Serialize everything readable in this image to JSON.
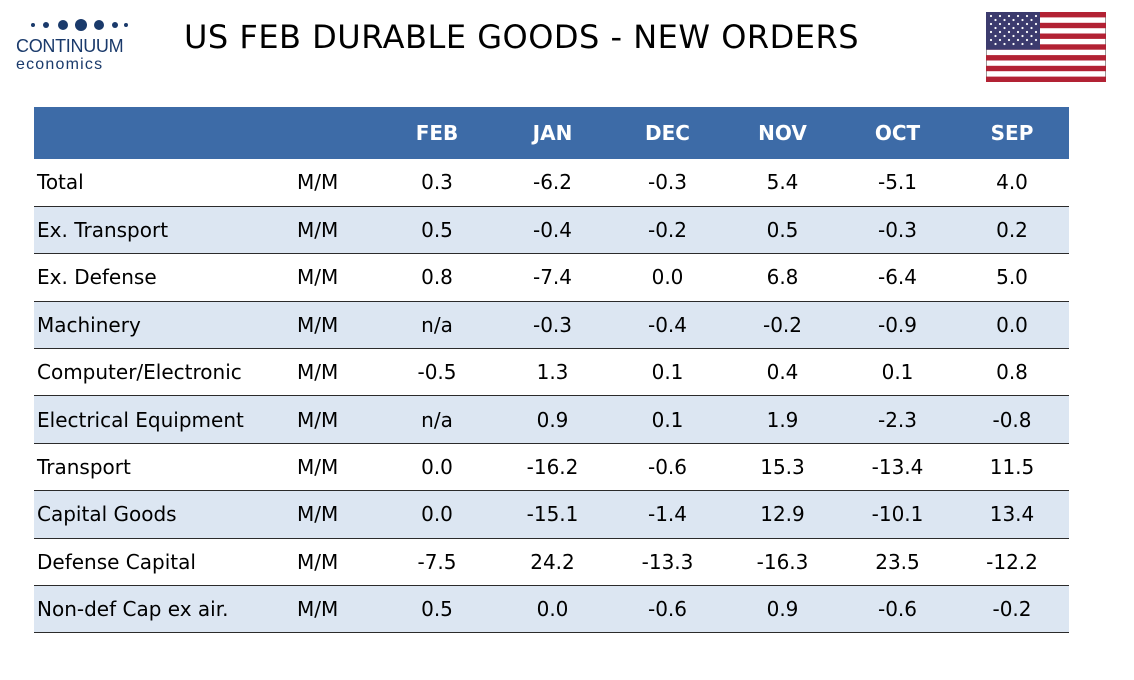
{
  "brand": {
    "name": "CONTINUUM",
    "sub": "economics",
    "color": "#1a3a6b"
  },
  "title": "US FEB DURABLE GOODS - NEW ORDERS",
  "flag": {
    "country": "United States",
    "icon": "us-flag-icon"
  },
  "colors": {
    "header_bg": "#3d6ba7",
    "stripe_bg": "#dce6f2",
    "header_text": "#ffffff"
  },
  "table": {
    "columns": [
      "",
      "",
      "FEB",
      "JAN",
      "DEC",
      "NOV",
      "OCT",
      "SEP"
    ],
    "rows": [
      {
        "label": "Total",
        "unit": "M/M",
        "values": [
          "0.3",
          "-6.2",
          "-0.3",
          "5.4",
          "-5.1",
          "4.0"
        ]
      },
      {
        "label": "Ex. Transport",
        "unit": "M/M",
        "values": [
          "0.5",
          "-0.4",
          "-0.2",
          "0.5",
          "-0.3",
          "0.2"
        ]
      },
      {
        "label": "Ex. Defense",
        "unit": "M/M",
        "values": [
          "0.8",
          "-7.4",
          "0.0",
          "6.8",
          "-6.4",
          "5.0"
        ]
      },
      {
        "label": "Machinery",
        "unit": "M/M",
        "values": [
          "n/a",
          "-0.3",
          "-0.4",
          "-0.2",
          "-0.9",
          "0.0"
        ]
      },
      {
        "label": "Computer/Electronic",
        "unit": "M/M",
        "values": [
          "-0.5",
          "1.3",
          "0.1",
          "0.4",
          "0.1",
          "0.8"
        ]
      },
      {
        "label": "Electrical Equipment",
        "unit": "M/M",
        "values": [
          "n/a",
          "0.9",
          "0.1",
          "1.9",
          "-2.3",
          "-0.8"
        ]
      },
      {
        "label": "Transport",
        "unit": "M/M",
        "values": [
          "0.0",
          "-16.2",
          "-0.6",
          "15.3",
          "-13.4",
          "11.5"
        ]
      },
      {
        "label": "Capital Goods",
        "unit": "M/M",
        "values": [
          "0.0",
          "-15.1",
          "-1.4",
          "12.9",
          "-10.1",
          "13.4"
        ]
      },
      {
        "label": "Defense Capital",
        "unit": "M/M",
        "values": [
          "-7.5",
          "24.2",
          "-13.3",
          "-16.3",
          "23.5",
          "-12.2"
        ]
      },
      {
        "label": "Non-def Cap ex air.",
        "unit": "M/M",
        "values": [
          "0.5",
          "0.0",
          "-0.6",
          "0.9",
          "-0.6",
          "-0.2"
        ]
      }
    ]
  }
}
